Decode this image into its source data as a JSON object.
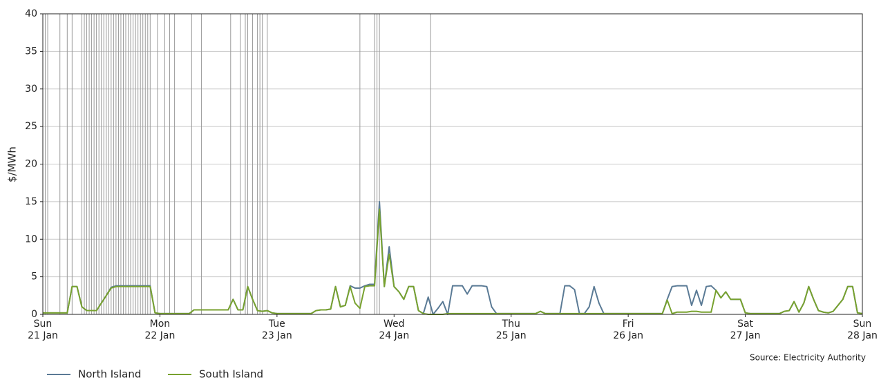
{
  "chart_data": {
    "type": "line",
    "ylabel": "$/MWh",
    "source": "Source: Electricity Authority",
    "x": [
      0,
      1,
      2,
      3,
      4,
      5,
      6,
      7,
      8,
      9,
      10,
      11,
      12,
      13,
      14,
      15,
      16,
      17,
      18,
      19,
      20,
      21,
      22,
      23,
      24,
      25,
      26,
      27,
      28,
      29,
      30,
      31,
      32,
      33,
      34,
      35,
      36,
      37,
      38,
      39,
      40,
      41,
      42,
      43,
      44,
      45,
      46,
      47,
      48,
      49,
      50,
      51,
      52,
      53,
      54,
      55,
      56,
      57,
      58,
      59,
      60,
      61,
      62,
      63,
      64,
      65,
      66,
      67,
      68,
      69,
      70,
      71,
      72,
      73,
      74,
      75,
      76,
      77,
      78,
      79,
      80,
      81,
      82,
      83,
      84,
      85,
      86,
      87,
      88,
      89,
      90,
      91,
      92,
      93,
      94,
      95,
      96,
      97,
      98,
      99,
      100,
      101,
      102,
      103,
      104,
      105,
      106,
      107,
      108,
      109,
      110,
      111,
      112,
      113,
      114,
      115,
      116,
      117,
      118,
      119,
      120,
      121,
      122,
      123,
      124,
      125,
      126,
      127,
      128,
      129,
      130,
      131,
      132,
      133,
      134,
      135,
      136,
      137,
      138,
      139,
      140,
      141,
      142,
      143,
      144,
      145,
      146,
      147,
      148,
      149,
      150,
      151,
      152,
      153,
      154,
      155,
      156,
      157,
      158,
      159,
      160,
      161,
      162,
      163,
      164,
      165,
      166,
      167,
      168
    ],
    "series": [
      {
        "name": "North Island",
        "color": "#5a7a95",
        "values": [
          0.2,
          0.2,
          0.2,
          0.2,
          0.2,
          0.2,
          3.7,
          3.7,
          1,
          0.5,
          0.5,
          0.5,
          1.5,
          2.5,
          3.6,
          3.8,
          3.8,
          3.8,
          3.8,
          3.8,
          3.8,
          3.8,
          3.8,
          0.2,
          0.1,
          0.1,
          0.1,
          0.1,
          0.1,
          0.1,
          0.1,
          0.6,
          0.6,
          0.6,
          0.6,
          0.6,
          0.6,
          0.6,
          0.6,
          2,
          0.6,
          0.6,
          3.7,
          2,
          0.5,
          0.4,
          0.5,
          0.2,
          0.1,
          0.1,
          0.1,
          0.1,
          0.1,
          0.1,
          0.1,
          0.1,
          0.5,
          0.6,
          0.6,
          0.7,
          3.7,
          1,
          1.2,
          3.8,
          3.5,
          3.5,
          3.8,
          4,
          4,
          15,
          3.7,
          9,
          3.7,
          3,
          2,
          3.7,
          3.7,
          0.5,
          0.1,
          2.3,
          0,
          0.8,
          1.7,
          0,
          3.8,
          3.8,
          3.8,
          2.7,
          3.8,
          3.8,
          3.8,
          3.7,
          1,
          0.1,
          0.1,
          0.1,
          0.1,
          0.1,
          0.1,
          0.1,
          0.1,
          0.1,
          0.4,
          0.1,
          0.1,
          0.1,
          0.1,
          3.8,
          3.8,
          3.3,
          0.1,
          0.1,
          1,
          3.7,
          1.5,
          0.1,
          0.1,
          0.1,
          0.1,
          0.1,
          0.1,
          0.1,
          0.1,
          0.1,
          0.1,
          0.1,
          0.1,
          0.1,
          2,
          3.7,
          3.8,
          3.8,
          3.8,
          1.2,
          3.2,
          1.2,
          3.7,
          3.8,
          3.2,
          2.2,
          3,
          2,
          2,
          2,
          0.2,
          0.1,
          0.1,
          0.1,
          0.1,
          0.1,
          0.1,
          0.1,
          0.4,
          0.5,
          1.7,
          0.3,
          1.5,
          3.7,
          2,
          0.5,
          0.3,
          0.2,
          0.4,
          1.2,
          2,
          3.7,
          3.7,
          0.2,
          0.1
        ]
      },
      {
        "name": "South Island",
        "color": "#78a22f",
        "values": [
          0.2,
          0.2,
          0.2,
          0.2,
          0.2,
          0.2,
          3.7,
          3.7,
          1,
          0.5,
          0.5,
          0.5,
          1.5,
          2.5,
          3.5,
          3.7,
          3.7,
          3.7,
          3.7,
          3.7,
          3.7,
          3.7,
          3.7,
          0.2,
          0.1,
          0.1,
          0.1,
          0.1,
          0.1,
          0.1,
          0.1,
          0.6,
          0.6,
          0.6,
          0.6,
          0.6,
          0.6,
          0.6,
          0.6,
          2,
          0.6,
          0.6,
          3.7,
          2,
          0.5,
          0.4,
          0.5,
          0.2,
          0.1,
          0.1,
          0.1,
          0.1,
          0.1,
          0.1,
          0.1,
          0.1,
          0.5,
          0.6,
          0.6,
          0.7,
          3.7,
          1,
          1.2,
          3.7,
          1.5,
          0.8,
          3.7,
          3.8,
          3.8,
          14,
          3.7,
          8,
          3.7,
          3,
          2,
          3.7,
          3.7,
          0.5,
          0.1,
          0,
          0,
          0,
          0,
          0.1,
          0.1,
          0.1,
          0.1,
          0.1,
          0.1,
          0.1,
          0.1,
          0.1,
          0.1,
          0.1,
          0.1,
          0.1,
          0.1,
          0.1,
          0.1,
          0.1,
          0.1,
          0.1,
          0.4,
          0.1,
          0.1,
          0.1,
          0.1,
          0.1,
          0.1,
          0.1,
          0.1,
          0.1,
          0.1,
          0.1,
          0.1,
          0.1,
          0.1,
          0.1,
          0.1,
          0.1,
          0.1,
          0.1,
          0.1,
          0.1,
          0.1,
          0.1,
          0.1,
          0.1,
          1.9,
          0.1,
          0.3,
          0.3,
          0.3,
          0.4,
          0.4,
          0.3,
          0.3,
          0.3,
          3.2,
          2.2,
          3,
          2,
          2,
          2,
          0.2,
          0.1,
          0.1,
          0.1,
          0.1,
          0.1,
          0.1,
          0.1,
          0.4,
          0.5,
          1.7,
          0.3,
          1.5,
          3.7,
          2,
          0.5,
          0.3,
          0.2,
          0.4,
          1.2,
          2,
          3.7,
          3.7,
          0.2,
          0.1
        ]
      }
    ],
    "vlines": [
      0.5,
      1,
      3.5,
      5,
      6,
      8,
      8.5,
      9,
      9.5,
      10,
      10.5,
      11,
      11.5,
      12,
      12.5,
      13,
      13.5,
      14,
      14.5,
      15,
      15.5,
      16,
      16.5,
      17,
      17.5,
      18,
      18.5,
      19,
      19.5,
      20,
      20.5,
      21,
      21.5,
      22,
      23.5,
      25,
      26,
      27,
      30.5,
      32.5,
      38.5,
      40.5,
      41.5,
      42,
      43,
      44,
      44.5,
      45,
      46,
      65,
      68,
      68.5,
      69,
      79.5
    ],
    "xlim": [
      0,
      168
    ],
    "xticks": [
      {
        "value": 0,
        "label": "Sun\n21 Jan"
      },
      {
        "value": 24,
        "label": "Mon\n22 Jan"
      },
      {
        "value": 48,
        "label": "Tue\n23 Jan"
      },
      {
        "value": 72,
        "label": "Wed\n24 Jan"
      },
      {
        "value": 96,
        "label": "Thu\n25 Jan"
      },
      {
        "value": 120,
        "label": "Fri\n26 Jan"
      },
      {
        "value": 144,
        "label": "Sat\n27 Jan"
      },
      {
        "value": 168,
        "label": "Sun\n28 Jan"
      }
    ],
    "ylim": [
      0,
      40
    ],
    "yticks": [
      0,
      5,
      10,
      15,
      20,
      25,
      30,
      35,
      40
    ],
    "grid": true,
    "legend": "bottom-left"
  }
}
